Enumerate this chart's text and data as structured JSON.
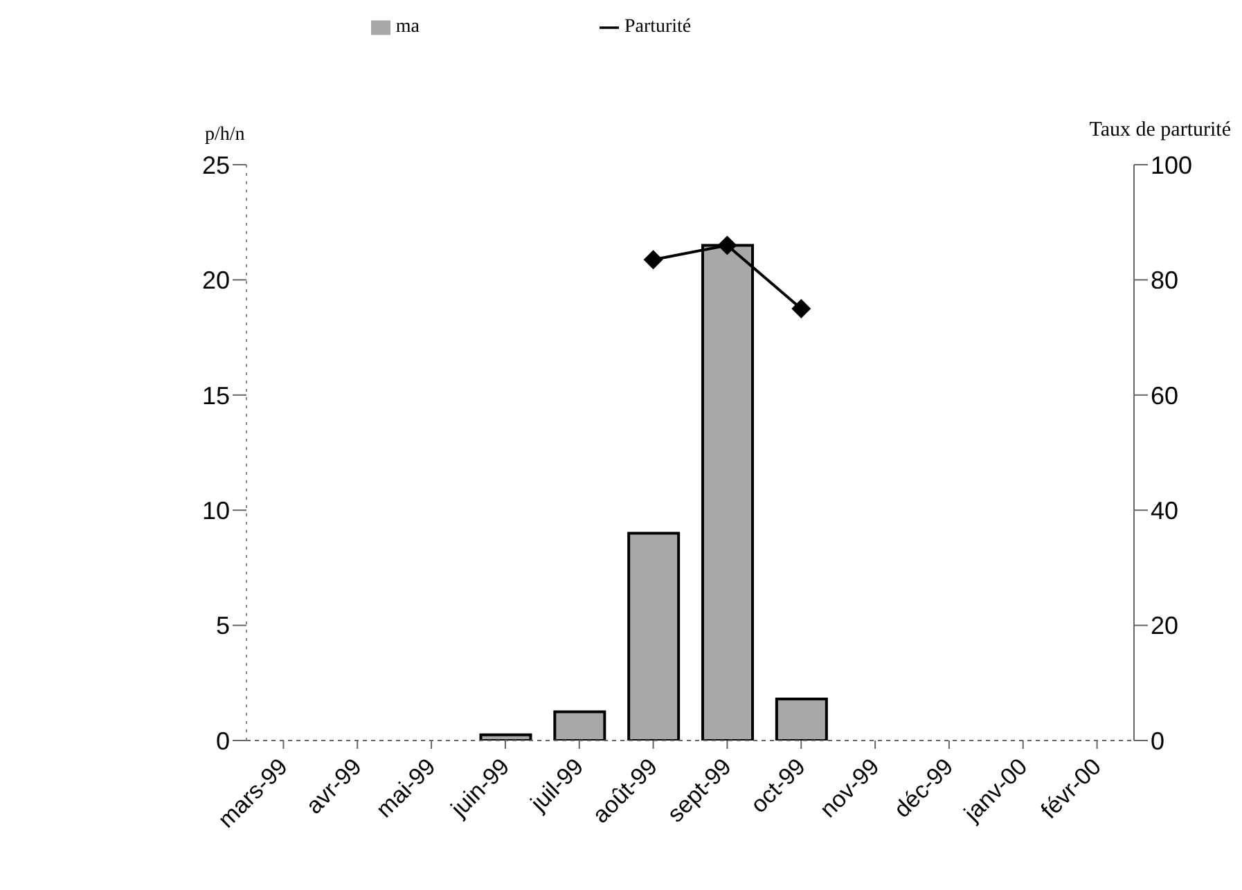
{
  "chart_data": {
    "type": "bar",
    "ylabel": "p/h/n",
    "y2label": "Taux de parturité",
    "categories": [
      "mars-99",
      "avr-99",
      "mai-99",
      "juin-99",
      "juil-99",
      "août-99",
      "sept-99",
      "oct-99",
      "nov-99",
      "déc-99",
      "janv-00",
      "févr-00"
    ],
    "series": [
      {
        "name": "ma",
        "color": "#a8a8a8",
        "values": [
          0,
          0,
          0,
          0.25,
          1.25,
          9,
          21.5,
          1.8,
          0,
          0,
          0,
          0
        ]
      },
      {
        "name": "Parturité",
        "type": "line",
        "axis": "y2",
        "color": "#000000",
        "marker": "diamond",
        "values": [
          null,
          null,
          null,
          null,
          null,
          83.5,
          86,
          75,
          null,
          null,
          null,
          null
        ]
      }
    ],
    "ylim": [
      0,
      25
    ],
    "yticks": [
      0,
      5,
      10,
      15,
      20,
      25
    ],
    "y2lim": [
      0,
      100
    ],
    "y2ticks": [
      0,
      20,
      40,
      60,
      80,
      100
    ],
    "legend": "top"
  }
}
